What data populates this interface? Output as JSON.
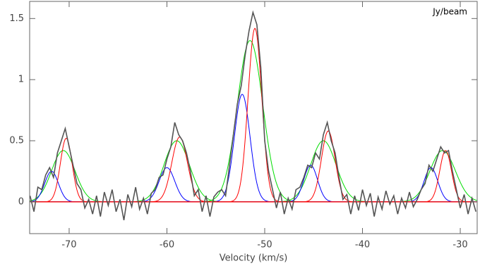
{
  "chart_data": {
    "type": "line",
    "annotation": "Jy/beam",
    "x_label": "Velocity (km/s)",
    "xlim": [
      -74.04,
      -28.27
    ],
    "ylim": [
      -0.26,
      1.64
    ],
    "xticks": [
      -70,
      -60,
      -50,
      -40,
      -30
    ],
    "yticks": [
      0,
      0.5,
      1,
      1.5
    ],
    "x": [
      -74.0,
      -73.6,
      -73.2,
      -72.8,
      -72.4,
      -72.0,
      -71.6,
      -71.2,
      -70.8,
      -70.4,
      -70.0,
      -69.6,
      -69.2,
      -68.8,
      -68.4,
      -68.0,
      -67.6,
      -67.2,
      -66.8,
      -66.4,
      -66.0,
      -65.6,
      -65.2,
      -64.8,
      -64.4,
      -64.0,
      -63.6,
      -63.2,
      -62.8,
      -62.4,
      -62.0,
      -61.6,
      -61.2,
      -60.8,
      -60.4,
      -60.0,
      -59.6,
      -59.2,
      -58.8,
      -58.4,
      -58.0,
      -57.6,
      -57.2,
      -56.8,
      -56.4,
      -56.0,
      -55.6,
      -55.2,
      -54.8,
      -54.4,
      -54.0,
      -53.6,
      -53.2,
      -52.8,
      -52.4,
      -52.0,
      -51.6,
      -51.2,
      -50.8,
      -50.4,
      -50.0,
      -49.6,
      -49.2,
      -48.8,
      -48.4,
      -48.0,
      -47.6,
      -47.2,
      -46.8,
      -46.4,
      -46.0,
      -45.6,
      -45.2,
      -44.8,
      -44.4,
      -44.0,
      -43.6,
      -43.2,
      -42.8,
      -42.4,
      -42.0,
      -41.6,
      -41.2,
      -40.8,
      -40.4,
      -40.0,
      -39.6,
      -39.2,
      -38.8,
      -38.4,
      -38.0,
      -37.6,
      -37.2,
      -36.8,
      -36.4,
      -36.0,
      -35.6,
      -35.2,
      -34.8,
      -34.4,
      -34.0,
      -33.6,
      -33.2,
      -32.8,
      -32.4,
      -32.0,
      -31.6,
      -31.2,
      -30.8,
      -30.4,
      -30.0,
      -29.6,
      -29.2,
      -28.8,
      -28.4
    ],
    "series": [
      {
        "color": "#555555",
        "values": [
          0.05,
          -0.08,
          0.12,
          0.1,
          0.22,
          0.28,
          0.2,
          0.4,
          0.5,
          0.6,
          0.45,
          0.3,
          0.15,
          0.1,
          -0.05,
          0.02,
          -0.1,
          0.05,
          -0.12,
          0.08,
          -0.03,
          0.1,
          -0.08,
          0.02,
          -0.15,
          0.06,
          -0.04,
          0.12,
          -0.06,
          0.03,
          -0.1,
          0.07,
          0.1,
          0.2,
          0.22,
          0.35,
          0.45,
          0.65,
          0.55,
          0.5,
          0.4,
          0.25,
          0.05,
          0.1,
          -0.08,
          0.05,
          -0.12,
          0.04,
          0.08,
          0.1,
          0.05,
          0.3,
          0.55,
          0.8,
          0.95,
          1.2,
          1.4,
          1.55,
          1.45,
          1.1,
          0.5,
          0.25,
          0.1,
          -0.05,
          0.08,
          -0.1,
          0.03,
          -0.06,
          0.1,
          0.12,
          0.2,
          0.3,
          0.28,
          0.4,
          0.35,
          0.55,
          0.65,
          0.5,
          0.4,
          0.2,
          0.02,
          0.06,
          -0.1,
          0.05,
          -0.07,
          0.1,
          -0.03,
          0.07,
          -0.12,
          0.04,
          -0.06,
          0.09,
          -0.02,
          0.05,
          -0.1,
          0.03,
          -0.05,
          0.08,
          -0.04,
          0.02,
          0.1,
          0.15,
          0.3,
          0.25,
          0.35,
          0.45,
          0.4,
          0.42,
          0.25,
          0.1,
          -0.05,
          0.06,
          -0.1,
          0.03,
          -0.08
        ]
      }
    ],
    "components": [
      {
        "color": "#00dd00",
        "amplitude": [
          0.42,
          0.5,
          1.32,
          0.5,
          0.42
        ],
        "center": [
          -70.6,
          -59.0,
          -51.5,
          -44.0,
          -31.8
        ],
        "sigma": [
          1.2,
          1.3,
          1.3,
          1.3,
          1.3
        ]
      },
      {
        "color": "#0000ff",
        "amplitude": [
          0.25,
          0.28,
          0.88,
          0.3,
          0.28
        ],
        "center": [
          -71.8,
          -60.0,
          -52.3,
          -45.3,
          -33.0
        ],
        "sigma": [
          0.7,
          0.8,
          0.8,
          0.7,
          0.7
        ]
      },
      {
        "color": "#ff0000",
        "amplitude": [
          0.52,
          0.53,
          1.42,
          0.58,
          0.42
        ],
        "center": [
          -70.3,
          -58.7,
          -51.0,
          -43.5,
          -31.5
        ],
        "sigma": [
          0.6,
          0.8,
          0.7,
          0.7,
          0.6
        ]
      }
    ]
  }
}
